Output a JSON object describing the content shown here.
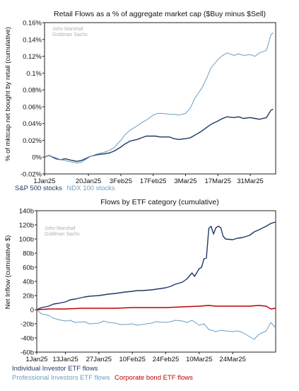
{
  "colors": {
    "sp500": "#1f3864",
    "ndx100": "#6a9ec5",
    "individual": "#1f3864",
    "professional": "#6a9ec5",
    "corporate": "#c00000",
    "axis": "#222222",
    "watermark": "#b0b0b0"
  },
  "chart_data": [
    {
      "type": "line",
      "title": "Retail Flows as a % of aggregate market cap ($Buy minus $Sell)",
      "ylabel": "% of mktcap net bought by retail (cumulative)",
      "xlabel": "",
      "watermark": [
        "John Marshall",
        "Goldman Sachs"
      ],
      "x_ticks": [
        "1Jan25",
        "20Jan25",
        "3Feb25",
        "17Feb25",
        "3Mar25",
        "17Mar25",
        "31Mar25"
      ],
      "y_ticks": [
        "-0.02%",
        "0%",
        "0.02%",
        "0.04%",
        "0.06%",
        "0.08%",
        "0.1%",
        "0.12%",
        "0.14%",
        "0.16%"
      ],
      "ylim": [
        -0.02,
        0.16
      ],
      "xlim": [
        "2025-01-01",
        "2025-04-11"
      ],
      "grid": false,
      "legend_position": "bottom-left",
      "series": [
        {
          "name": "S&P 500 stocks",
          "color_key": "sp500",
          "points": [
            [
              "2025-01-01",
              0.0
            ],
            [
              "2025-01-03",
              0.002
            ],
            [
              "2025-01-06",
              -0.002
            ],
            [
              "2025-01-08",
              -0.003
            ],
            [
              "2025-01-10",
              -0.002
            ],
            [
              "2025-01-13",
              -0.004
            ],
            [
              "2025-01-15",
              -0.005
            ],
            [
              "2025-01-17",
              -0.004
            ],
            [
              "2025-01-21",
              0.001
            ],
            [
              "2025-01-24",
              0.003
            ],
            [
              "2025-01-27",
              0.004
            ],
            [
              "2025-01-29",
              0.005
            ],
            [
              "2025-01-31",
              0.007
            ],
            [
              "2025-02-03",
              0.012
            ],
            [
              "2025-02-05",
              0.016
            ],
            [
              "2025-02-07",
              0.019
            ],
            [
              "2025-02-10",
              0.021
            ],
            [
              "2025-02-12",
              0.023
            ],
            [
              "2025-02-14",
              0.025
            ],
            [
              "2025-02-18",
              0.025
            ],
            [
              "2025-02-20",
              0.024
            ],
            [
              "2025-02-24",
              0.024
            ],
            [
              "2025-02-26",
              0.022
            ],
            [
              "2025-02-28",
              0.021
            ],
            [
              "2025-03-03",
              0.022
            ],
            [
              "2025-03-05",
              0.023
            ],
            [
              "2025-03-07",
              0.026
            ],
            [
              "2025-03-10",
              0.031
            ],
            [
              "2025-03-12",
              0.035
            ],
            [
              "2025-03-14",
              0.039
            ],
            [
              "2025-03-17",
              0.043
            ],
            [
              "2025-03-19",
              0.046
            ],
            [
              "2025-03-21",
              0.048
            ],
            [
              "2025-03-24",
              0.047
            ],
            [
              "2025-03-26",
              0.048
            ],
            [
              "2025-03-28",
              0.046
            ],
            [
              "2025-03-31",
              0.047
            ],
            [
              "2025-04-02",
              0.046
            ],
            [
              "2025-04-04",
              0.045
            ],
            [
              "2025-04-07",
              0.047
            ],
            [
              "2025-04-09",
              0.056
            ],
            [
              "2025-04-10",
              0.057
            ]
          ]
        },
        {
          "name": "NDX 100 stocks",
          "color_key": "ndx100",
          "points": [
            [
              "2025-01-01",
              0.0
            ],
            [
              "2025-01-03",
              0.002
            ],
            [
              "2025-01-06",
              -0.001
            ],
            [
              "2025-01-08",
              -0.003
            ],
            [
              "2025-01-10",
              -0.004
            ],
            [
              "2025-01-13",
              -0.006
            ],
            [
              "2025-01-15",
              -0.007
            ],
            [
              "2025-01-17",
              -0.006
            ],
            [
              "2025-01-21",
              0.001
            ],
            [
              "2025-01-24",
              0.004
            ],
            [
              "2025-01-27",
              0.006
            ],
            [
              "2025-01-29",
              0.008
            ],
            [
              "2025-01-31",
              0.011
            ],
            [
              "2025-02-03",
              0.02
            ],
            [
              "2025-02-05",
              0.027
            ],
            [
              "2025-02-07",
              0.032
            ],
            [
              "2025-02-10",
              0.037
            ],
            [
              "2025-02-12",
              0.041
            ],
            [
              "2025-02-14",
              0.044
            ],
            [
              "2025-02-17",
              0.05
            ],
            [
              "2025-02-19",
              0.052
            ],
            [
              "2025-02-21",
              0.052
            ],
            [
              "2025-02-24",
              0.051
            ],
            [
              "2025-02-26",
              0.051
            ],
            [
              "2025-02-28",
              0.05
            ],
            [
              "2025-03-03",
              0.052
            ],
            [
              "2025-03-05",
              0.058
            ],
            [
              "2025-03-07",
              0.07
            ],
            [
              "2025-03-10",
              0.082
            ],
            [
              "2025-03-12",
              0.093
            ],
            [
              "2025-03-14",
              0.106
            ],
            [
              "2025-03-17",
              0.116
            ],
            [
              "2025-03-19",
              0.121
            ],
            [
              "2025-03-21",
              0.124
            ],
            [
              "2025-03-24",
              0.121
            ],
            [
              "2025-03-26",
              0.123
            ],
            [
              "2025-03-28",
              0.121
            ],
            [
              "2025-03-31",
              0.122
            ],
            [
              "2025-04-02",
              0.12
            ],
            [
              "2025-04-04",
              0.124
            ],
            [
              "2025-04-07",
              0.127
            ],
            [
              "2025-04-09",
              0.146
            ],
            [
              "2025-04-10",
              0.148
            ]
          ]
        }
      ]
    },
    {
      "type": "line",
      "title": "Flows by ETF category (cumulative)",
      "ylabel": "Net Inflow (cumulative $)",
      "xlabel": "",
      "watermark": [
        "John Marshall",
        "Goldman Sachs"
      ],
      "x_ticks": [
        "1Jan25",
        "13Jan25",
        "27Jan25",
        "10Feb25",
        "24Feb25",
        "10Mar25",
        "24Mar25"
      ],
      "y_ticks": [
        "-60b",
        "-40b",
        "-20b",
        "0",
        "20b",
        "40b",
        "60b",
        "80b",
        "100b",
        "120b",
        "140b"
      ],
      "ylim": [
        -60,
        140
      ],
      "xlim": [
        "2025-01-01",
        "2025-04-11"
      ],
      "grid": false,
      "legend_position": "bottom-left",
      "series": [
        {
          "name": "Individual Investor ETF flows",
          "color_key": "individual",
          "points": [
            [
              "2025-01-01",
              0
            ],
            [
              "2025-01-03",
              3
            ],
            [
              "2025-01-06",
              5
            ],
            [
              "2025-01-08",
              8
            ],
            [
              "2025-01-10",
              9
            ],
            [
              "2025-01-13",
              11
            ],
            [
              "2025-01-15",
              14
            ],
            [
              "2025-01-17",
              15
            ],
            [
              "2025-01-21",
              18
            ],
            [
              "2025-01-23",
              19
            ],
            [
              "2025-01-27",
              20
            ],
            [
              "2025-01-29",
              21
            ],
            [
              "2025-01-31",
              22
            ],
            [
              "2025-02-03",
              23
            ],
            [
              "2025-02-05",
              24
            ],
            [
              "2025-02-07",
              25
            ],
            [
              "2025-02-10",
              26
            ],
            [
              "2025-02-12",
              27
            ],
            [
              "2025-02-14",
              27
            ],
            [
              "2025-02-18",
              28
            ],
            [
              "2025-02-20",
              29
            ],
            [
              "2025-02-24",
              31
            ],
            [
              "2025-02-26",
              33
            ],
            [
              "2025-02-28",
              36
            ],
            [
              "2025-03-03",
              39
            ],
            [
              "2025-03-05",
              44
            ],
            [
              "2025-03-07",
              52
            ],
            [
              "2025-03-08",
              47
            ],
            [
              "2025-03-10",
              58
            ],
            [
              "2025-03-11",
              60
            ],
            [
              "2025-03-12",
              72
            ],
            [
              "2025-03-13",
              73
            ],
            [
              "2025-03-14",
              115
            ],
            [
              "2025-03-15",
              118
            ],
            [
              "2025-03-16",
              107
            ],
            [
              "2025-03-17",
              116
            ],
            [
              "2025-03-18",
              118
            ],
            [
              "2025-03-19",
              116
            ],
            [
              "2025-03-20",
              104
            ],
            [
              "2025-03-21",
              100
            ],
            [
              "2025-03-24",
              99
            ],
            [
              "2025-03-26",
              101
            ],
            [
              "2025-03-28",
              102
            ],
            [
              "2025-03-31",
              105
            ],
            [
              "2025-04-02",
              110
            ],
            [
              "2025-04-04",
              113
            ],
            [
              "2025-04-07",
              118
            ],
            [
              "2025-04-09",
              122
            ],
            [
              "2025-04-11",
              124
            ]
          ]
        },
        {
          "name": "Professional Investors ETF flows",
          "color_key": "professional",
          "points": [
            [
              "2025-01-01",
              0
            ],
            [
              "2025-01-03",
              -6
            ],
            [
              "2025-01-06",
              -8
            ],
            [
              "2025-01-08",
              -12
            ],
            [
              "2025-01-10",
              -14
            ],
            [
              "2025-01-13",
              -16
            ],
            [
              "2025-01-15",
              -15
            ],
            [
              "2025-01-17",
              -18
            ],
            [
              "2025-01-21",
              -17
            ],
            [
              "2025-01-23",
              -20
            ],
            [
              "2025-01-27",
              -19
            ],
            [
              "2025-01-29",
              -16
            ],
            [
              "2025-01-31",
              -18
            ],
            [
              "2025-02-03",
              -19
            ],
            [
              "2025-02-05",
              -21
            ],
            [
              "2025-02-07",
              -21
            ],
            [
              "2025-02-10",
              -20
            ],
            [
              "2025-02-12",
              -22
            ],
            [
              "2025-02-14",
              -21
            ],
            [
              "2025-02-18",
              -19
            ],
            [
              "2025-02-20",
              -17
            ],
            [
              "2025-02-24",
              -18
            ],
            [
              "2025-02-26",
              -17
            ],
            [
              "2025-02-28",
              -15
            ],
            [
              "2025-03-03",
              -16
            ],
            [
              "2025-03-05",
              -18
            ],
            [
              "2025-03-07",
              -15
            ],
            [
              "2025-03-10",
              -22
            ],
            [
              "2025-03-12",
              -20
            ],
            [
              "2025-03-14",
              -28
            ],
            [
              "2025-03-17",
              -31
            ],
            [
              "2025-03-19",
              -29
            ],
            [
              "2025-03-21",
              -30
            ],
            [
              "2025-03-24",
              -31
            ],
            [
              "2025-03-26",
              -30
            ],
            [
              "2025-03-28",
              -32
            ],
            [
              "2025-03-31",
              -38
            ],
            [
              "2025-04-02",
              -42
            ],
            [
              "2025-04-04",
              -35
            ],
            [
              "2025-04-07",
              -30
            ],
            [
              "2025-04-09",
              -18
            ],
            [
              "2025-04-11",
              -26
            ]
          ]
        },
        {
          "name": "Corporate bond ETF flows",
          "color_key": "corporate",
          "points": [
            [
              "2025-01-01",
              0
            ],
            [
              "2025-01-06",
              1
            ],
            [
              "2025-01-13",
              1
            ],
            [
              "2025-01-20",
              2
            ],
            [
              "2025-01-27",
              2
            ],
            [
              "2025-02-03",
              2
            ],
            [
              "2025-02-10",
              3
            ],
            [
              "2025-02-17",
              3
            ],
            [
              "2025-02-24",
              3
            ],
            [
              "2025-03-03",
              4
            ],
            [
              "2025-03-10",
              5
            ],
            [
              "2025-03-14",
              6
            ],
            [
              "2025-03-17",
              5
            ],
            [
              "2025-03-24",
              5
            ],
            [
              "2025-03-31",
              5
            ],
            [
              "2025-04-04",
              6
            ],
            [
              "2025-04-07",
              5
            ],
            [
              "2025-04-09",
              1
            ],
            [
              "2025-04-11",
              2
            ]
          ]
        }
      ]
    }
  ]
}
